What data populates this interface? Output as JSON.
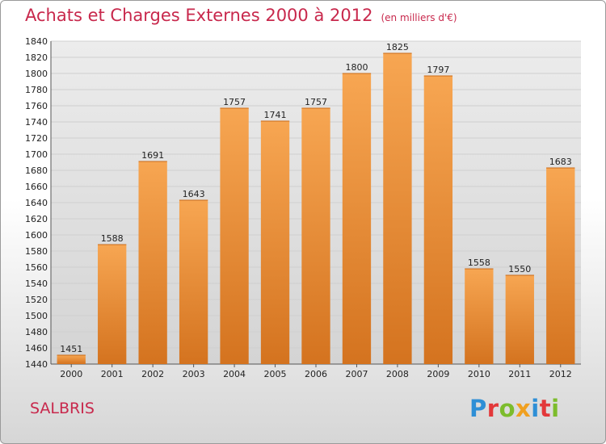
{
  "header": {
    "title": "Achats et Charges Externes 2000 à 2012",
    "unit": "(en milliers d'€)"
  },
  "footer": {
    "city": "SALBRIS",
    "logo": "Proxiti"
  },
  "colors": {
    "title": "#c8284c",
    "bar_light": "#f7a652",
    "bar_dark": "#d4731f",
    "grid": "#cfcfcf",
    "plot_bg": "#dcdcdc"
  },
  "chart_data": {
    "type": "bar",
    "title": "Achats et Charges Externes 2000 à 2012",
    "subtitle": "(en milliers d'€)",
    "xlabel": "",
    "ylabel": "",
    "categories": [
      "2000",
      "2001",
      "2002",
      "2003",
      "2004",
      "2005",
      "2006",
      "2007",
      "2008",
      "2009",
      "2010",
      "2011",
      "2012"
    ],
    "values": [
      1451,
      1588,
      1691,
      1643,
      1757,
      1741,
      1757,
      1800,
      1825,
      1797,
      1558,
      1550,
      1683
    ],
    "ylim": [
      1440,
      1840
    ],
    "ytick_step": 20,
    "grid": true,
    "legend": "none"
  }
}
